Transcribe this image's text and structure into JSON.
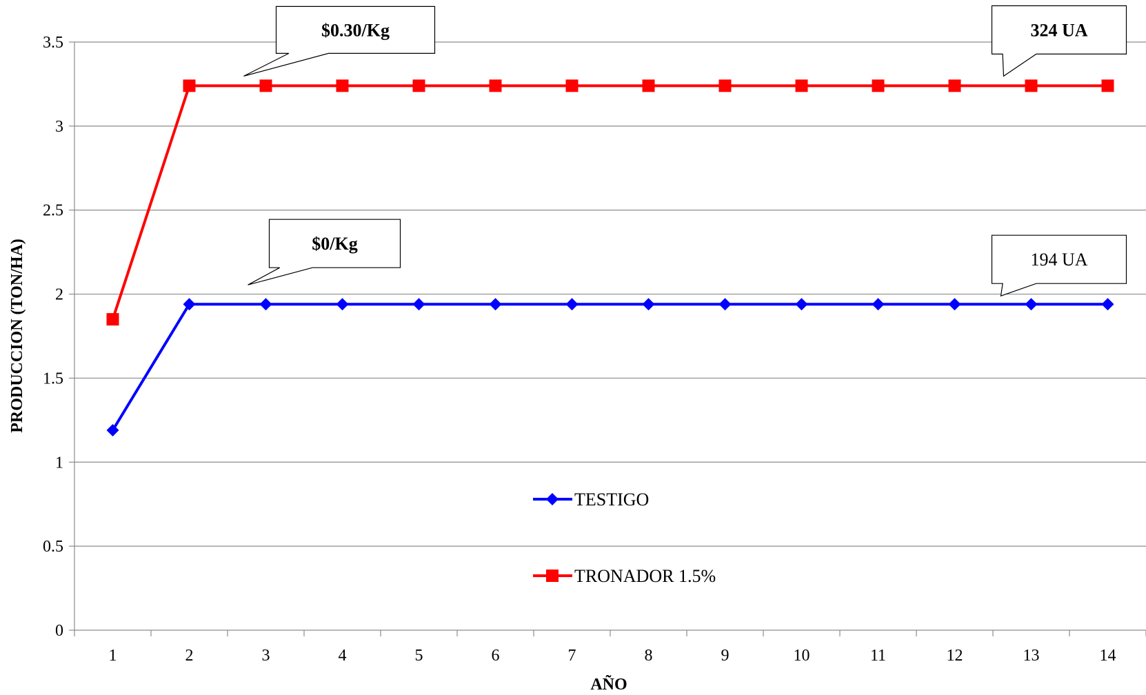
{
  "chart_data": {
    "type": "line",
    "title": "",
    "xlabel": "AÑO",
    "ylabel": "PRODUCCION (TON/HA)",
    "categories": [
      "1",
      "2",
      "3",
      "4",
      "5",
      "6",
      "7",
      "8",
      "9",
      "10",
      "11",
      "12",
      "13",
      "14"
    ],
    "ylim": [
      0,
      3.5
    ],
    "yticks": [
      "0",
      "0.5",
      "1",
      "1.5",
      "2",
      "2.5",
      "3",
      "3.5"
    ],
    "grid": "horizontal",
    "legend_placement": "center",
    "series": [
      {
        "name": "TESTIGO",
        "color": "#0000ff",
        "marker": "diamond",
        "values": [
          1.19,
          1.94,
          1.94,
          1.94,
          1.94,
          1.94,
          1.94,
          1.94,
          1.94,
          1.94,
          1.94,
          1.94,
          1.94,
          1.94
        ]
      },
      {
        "name": "TRONADOR 1.5%",
        "color": "#ff0000",
        "marker": "square",
        "values": [
          1.85,
          3.24,
          3.24,
          3.24,
          3.24,
          3.24,
          3.24,
          3.24,
          3.24,
          3.24,
          3.24,
          3.24,
          3.24,
          3.24
        ]
      }
    ],
    "annotations": [
      {
        "text": "$0.30/Kg",
        "bold": true,
        "series": "TRONADOR 1.5%",
        "x": "3"
      },
      {
        "text": "324 UA",
        "bold": true,
        "series": "TRONADOR 1.5%",
        "x": "13"
      },
      {
        "text": "$0/Kg",
        "bold": true,
        "series": "TESTIGO",
        "x": "3"
      },
      {
        "text": "194 UA",
        "bold": false,
        "series": "TESTIGO",
        "x": "13"
      }
    ]
  }
}
